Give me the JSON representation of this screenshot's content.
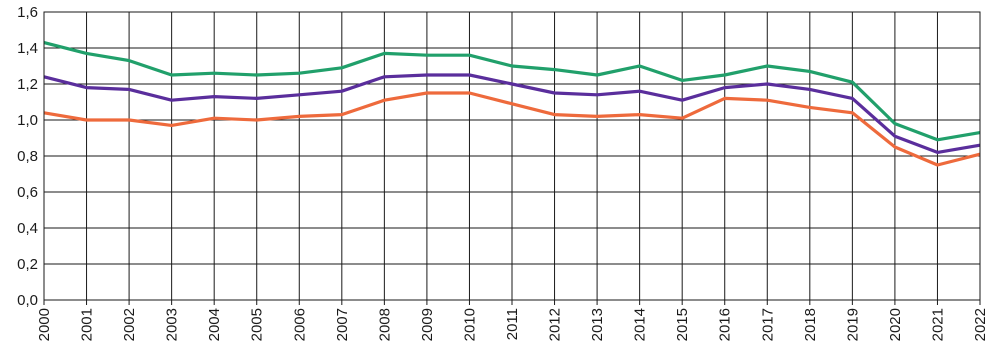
{
  "chart_data": {
    "type": "line",
    "title": "",
    "xlabel": "",
    "ylabel": "",
    "x": [
      "2000",
      "2001",
      "2002",
      "2003",
      "2004",
      "2005",
      "2006",
      "2007",
      "2008",
      "2009",
      "2010",
      "2011",
      "2012",
      "2013",
      "2014",
      "2015",
      "2016",
      "2017",
      "2018",
      "2019",
      "2020",
      "2021",
      "2022"
    ],
    "ylim": [
      0,
      1.6
    ],
    "yticks": [
      "0,0",
      "0,2",
      "0,4",
      "0,6",
      "0,8",
      "1,0",
      "1,2",
      "1,4",
      "1,6"
    ],
    "grid": true,
    "legend": "none",
    "series": [
      {
        "color": "#21A06B",
        "values": [
          1.43,
          1.37,
          1.33,
          1.25,
          1.26,
          1.25,
          1.26,
          1.29,
          1.37,
          1.36,
          1.36,
          1.3,
          1.28,
          1.25,
          1.3,
          1.22,
          1.25,
          1.3,
          1.27,
          1.21,
          0.98,
          0.89,
          0.93
        ]
      },
      {
        "color": "#5A2E9C",
        "values": [
          1.24,
          1.18,
          1.17,
          1.11,
          1.13,
          1.12,
          1.14,
          1.16,
          1.24,
          1.25,
          1.25,
          1.2,
          1.15,
          1.14,
          1.16,
          1.11,
          1.18,
          1.2,
          1.17,
          1.12,
          0.91,
          0.82,
          0.86
        ]
      },
      {
        "color": "#EE6A3C",
        "values": [
          1.04,
          1.0,
          1.0,
          0.97,
          1.01,
          1.0,
          1.02,
          1.03,
          1.11,
          1.15,
          1.15,
          1.09,
          1.03,
          1.02,
          1.03,
          1.01,
          1.12,
          1.11,
          1.07,
          1.04,
          0.85,
          0.75,
          0.81
        ]
      }
    ]
  }
}
